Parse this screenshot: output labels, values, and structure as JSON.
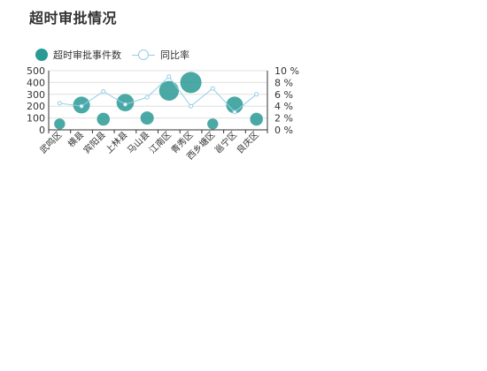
{
  "title": "超时审批情况",
  "legend": [
    {
      "label": "超时审批事件数",
      "kind": "bubble"
    },
    {
      "label": "同比率",
      "kind": "line"
    }
  ],
  "colors": {
    "bubble": "#2a9a94",
    "line": "#94cfe8",
    "axis": "#333333",
    "grid": "#e0e0e0"
  },
  "chart_data": {
    "type": "scatter",
    "categories": [
      "武鸣区",
      "横县",
      "宾阳县",
      "上林县",
      "马山县",
      "江南区",
      "青秀区",
      "西乡塘区",
      "邕宁区",
      "良庆区"
    ],
    "series": [
      {
        "name": "超时审批事件数",
        "type": "bubble",
        "axis": "left",
        "values": [
          50,
          210,
          90,
          230,
          100,
          330,
          400,
          50,
          210,
          90
        ]
      },
      {
        "name": "同比率",
        "type": "line",
        "axis": "right",
        "values": [
          4.5,
          4.0,
          6.5,
          4.3,
          5.5,
          9.0,
          4.0,
          7.0,
          3.0,
          6.0
        ]
      }
    ],
    "y_left": {
      "min": 0,
      "max": 500,
      "ticks": [
        0,
        100,
        200,
        300,
        400,
        500
      ]
    },
    "y_right": {
      "min": 0,
      "max": 10,
      "ticks": [
        "0 %",
        "2 %",
        "4 %",
        "6 %",
        "8 %",
        "10 %"
      ]
    },
    "grid": true,
    "legend_position": "top-left"
  }
}
